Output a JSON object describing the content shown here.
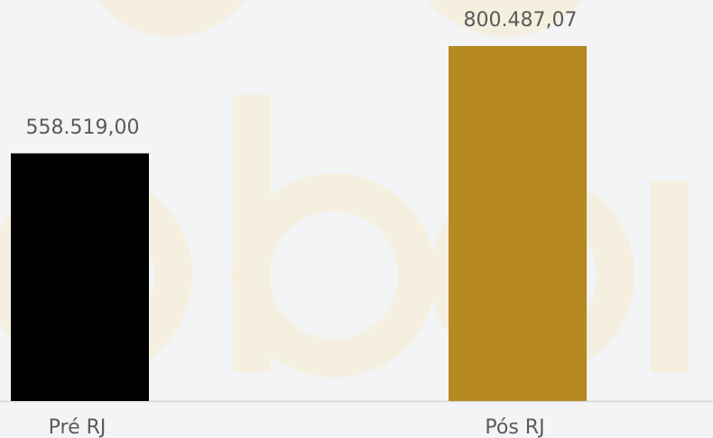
{
  "chart_data": {
    "type": "bar",
    "categories": [
      "Pré RJ",
      "Pós RJ"
    ],
    "values": [
      558519.0,
      800487.07
    ],
    "value_labels": [
      "558.519,00",
      "800.487,07"
    ],
    "colors": [
      "#000000",
      "#b5891f"
    ]
  }
}
